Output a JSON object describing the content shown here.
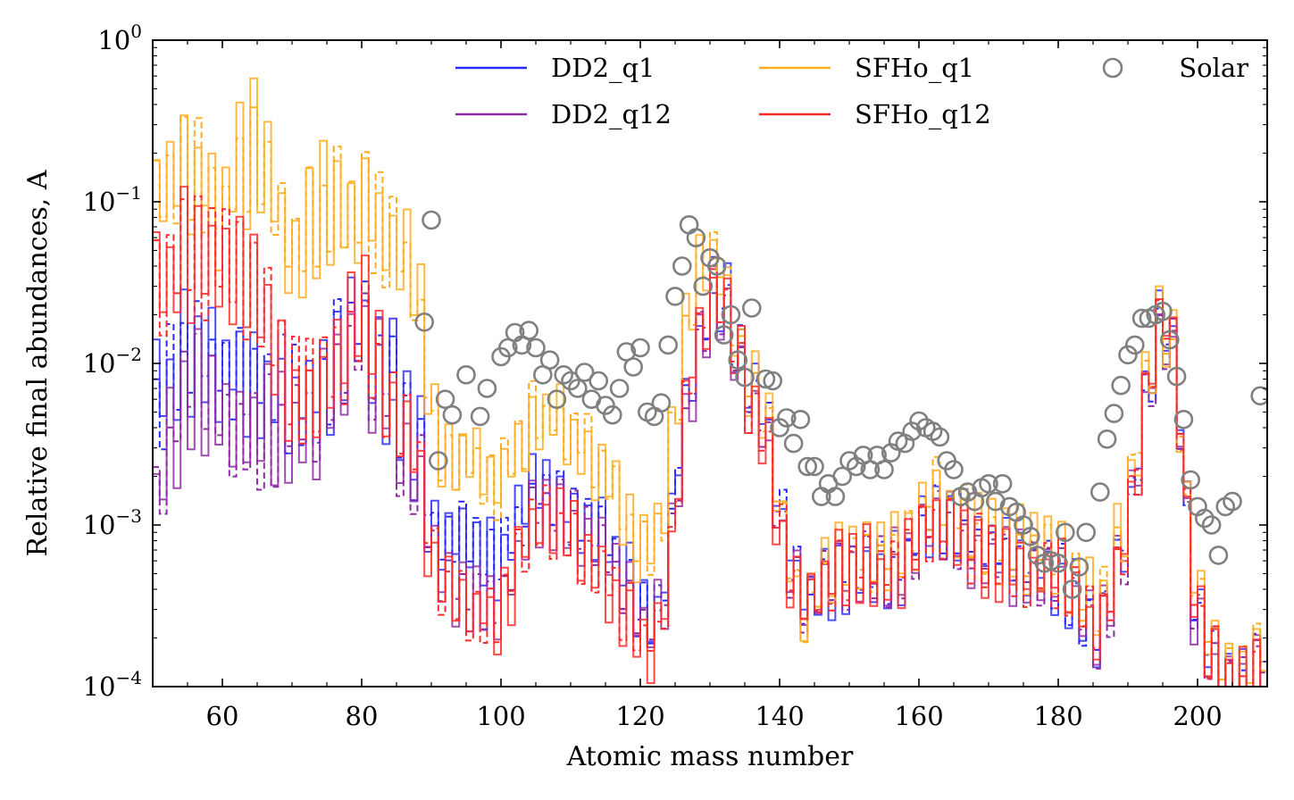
{
  "chart_data": {
    "type": "line",
    "xlabel": "Atomic mass number",
    "ylabel": "Relative final abundances, A",
    "xlim": [
      50,
      210
    ],
    "ylim": [
      0.0001,
      1
    ],
    "yscale": "log",
    "x_ticks": [
      60,
      80,
      100,
      120,
      140,
      160,
      180,
      200
    ],
    "x_tick_labels": [
      "60",
      "80",
      "100",
      "120",
      "140",
      "160",
      "180",
      "200"
    ],
    "y_ticks": [
      0.0001,
      0.001,
      0.01,
      0.1,
      1
    ],
    "y_tick_base": [
      "10",
      "10",
      "10",
      "10",
      "10"
    ],
    "y_tick_exp": [
      "−4",
      "−3",
      "−2",
      "−1",
      "0"
    ],
    "legend": {
      "placement": "top",
      "entries": [
        {
          "label": "DD2_q1",
          "color": "#2a2aff",
          "kind": "line"
        },
        {
          "label": "DD2_q12",
          "color": "#8e2ba3",
          "kind": "line"
        },
        {
          "label": "SFHo_q1",
          "color": "#ffad1f",
          "kind": "line"
        },
        {
          "label": "SFHo_q12",
          "color": "#ff2a2a",
          "kind": "line"
        },
        {
          "label": "Solar",
          "color": "#808080",
          "kind": "marker"
        }
      ]
    },
    "series": [
      {
        "name": "DD2_q1",
        "color": "#2a2aff",
        "style": "solid+dashed",
        "step": true,
        "x": [
          50,
          55,
          60,
          65,
          70,
          75,
          80,
          85,
          88,
          91,
          95,
          100,
          105,
          110,
          115,
          120,
          123,
          126,
          128,
          131,
          133,
          135,
          138,
          140,
          142,
          144,
          148,
          152,
          155,
          158,
          162,
          165,
          168,
          172,
          175,
          178,
          180,
          183,
          186,
          190,
          193,
          195,
          197,
          199,
          202,
          205,
          208,
          210
        ],
        "y": [
          0.005,
          0.012,
          0.01,
          0.008,
          0.006,
          0.008,
          0.02,
          0.006,
          0.003,
          0.0008,
          0.0009,
          0.0006,
          0.0017,
          0.0012,
          0.0009,
          0.0003,
          0.0003,
          0.004,
          0.012,
          0.03,
          0.02,
          0.008,
          0.005,
          0.0012,
          0.0006,
          0.0003,
          0.0005,
          0.0006,
          0.0005,
          0.0006,
          0.0013,
          0.001,
          0.0008,
          0.0007,
          0.0006,
          0.0006,
          0.0005,
          0.0003,
          0.0002,
          0.001,
          0.008,
          0.02,
          0.01,
          0.0005,
          0.00015,
          0.0001,
          0.00012,
          0.0002
        ]
      },
      {
        "name": "DD2_q12",
        "color": "#8e2ba3",
        "style": "solid+dashed",
        "step": true,
        "x": [
          50,
          55,
          60,
          65,
          70,
          75,
          80,
          85,
          88,
          91,
          95,
          100,
          105,
          110,
          115,
          120,
          123,
          126,
          128,
          131,
          133,
          135,
          138,
          140,
          142,
          144,
          148,
          152,
          155,
          158,
          162,
          165,
          168,
          172,
          175,
          178,
          180,
          183,
          186,
          190,
          193,
          195,
          197,
          199,
          202,
          205,
          208,
          210
        ],
        "y": [
          0.0012,
          0.008,
          0.005,
          0.004,
          0.004,
          0.006,
          0.015,
          0.004,
          0.002,
          0.0005,
          0.0004,
          0.0003,
          0.0014,
          0.001,
          0.0007,
          0.00025,
          0.00025,
          0.003,
          0.01,
          0.025,
          0.018,
          0.007,
          0.004,
          0.001,
          0.0005,
          0.0003,
          0.0005,
          0.00055,
          0.0005,
          0.0006,
          0.0011,
          0.0009,
          0.0007,
          0.0006,
          0.0006,
          0.0005,
          0.0005,
          0.0003,
          0.0002,
          0.0009,
          0.007,
          0.018,
          0.01,
          0.0004,
          0.00014,
          0.0001,
          0.0001,
          0.0002
        ]
      },
      {
        "name": "SFHo_q1",
        "color": "#ffad1f",
        "style": "solid+dashed",
        "step": true,
        "x": [
          50,
          55,
          60,
          65,
          70,
          75,
          80,
          85,
          88,
          91,
          95,
          100,
          105,
          110,
          115,
          120,
          123,
          126,
          128,
          131,
          133,
          135,
          138,
          140,
          142,
          144,
          148,
          152,
          155,
          158,
          162,
          165,
          168,
          172,
          175,
          178,
          180,
          183,
          186,
          190,
          193,
          195,
          197,
          199,
          202,
          205,
          208,
          210
        ],
        "y": [
          0.1,
          0.18,
          0.09,
          0.25,
          0.05,
          0.1,
          0.09,
          0.06,
          0.025,
          0.003,
          0.0025,
          0.0018,
          0.005,
          0.004,
          0.002,
          0.0007,
          0.0008,
          0.012,
          0.04,
          0.05,
          0.025,
          0.01,
          0.005,
          0.0015,
          0.0004,
          0.0003,
          0.0006,
          0.0007,
          0.0006,
          0.0007,
          0.0017,
          0.0012,
          0.0009,
          0.0008,
          0.0007,
          0.0007,
          0.0006,
          0.0004,
          0.0003,
          0.0012,
          0.009,
          0.02,
          0.01,
          0.0006,
          0.0002,
          0.00012,
          0.00015,
          0.00025
        ]
      },
      {
        "name": "SFHo_q12",
        "color": "#ff2a2a",
        "style": "solid+dashed",
        "step": true,
        "x": [
          50,
          55,
          60,
          65,
          70,
          75,
          80,
          85,
          88,
          91,
          95,
          100,
          105,
          110,
          115,
          120,
          123,
          126,
          128,
          131,
          133,
          135,
          138,
          140,
          142,
          144,
          148,
          152,
          155,
          158,
          162,
          165,
          168,
          172,
          175,
          178,
          180,
          183,
          186,
          190,
          193,
          195,
          197,
          199,
          202,
          205,
          208,
          210
        ],
        "y": [
          0.03,
          0.05,
          0.04,
          0.03,
          0.006,
          0.008,
          0.02,
          0.005,
          0.0025,
          0.0005,
          0.0003,
          0.0003,
          0.0012,
          0.0008,
          0.0005,
          0.0002,
          0.0002,
          0.003,
          0.015,
          0.03,
          0.02,
          0.007,
          0.004,
          0.001,
          0.0004,
          0.0003,
          0.0005,
          0.0006,
          0.0005,
          0.0006,
          0.0011,
          0.0009,
          0.0007,
          0.0006,
          0.0005,
          0.0005,
          0.0005,
          0.0003,
          0.0002,
          0.001,
          0.008,
          0.022,
          0.01,
          0.0005,
          0.00015,
          0.0001,
          0.0001,
          0.0002
        ]
      }
    ],
    "solar": {
      "name": "Solar",
      "color": "#808080",
      "marker": "open-circle",
      "x": [
        89,
        90,
        91,
        92,
        93,
        95,
        97,
        98,
        100,
        101,
        102,
        103,
        104,
        105,
        106,
        107,
        108,
        109,
        110,
        111,
        112,
        113,
        114,
        115,
        116,
        117,
        118,
        119,
        120,
        121,
        122,
        123,
        124,
        125,
        126,
        127,
        128,
        129,
        130,
        131,
        132,
        133,
        134,
        135,
        136,
        138,
        139,
        140,
        141,
        142,
        143,
        144,
        145,
        146,
        147,
        148,
        149,
        150,
        151,
        152,
        153,
        154,
        155,
        156,
        157,
        158,
        159,
        160,
        161,
        162,
        163,
        164,
        165,
        166,
        167,
        168,
        169,
        170,
        171,
        172,
        173,
        174,
        175,
        176,
        177,
        178,
        179,
        180,
        181,
        182,
        183,
        184,
        186,
        187,
        188,
        189,
        190,
        191,
        192,
        193,
        194,
        195,
        196,
        197,
        198,
        199,
        200,
        201,
        202,
        203,
        204,
        205,
        209
      ],
      "y": [
        0.018,
        0.077,
        0.0025,
        0.006,
        0.0048,
        0.0085,
        0.0047,
        0.007,
        0.011,
        0.0125,
        0.0155,
        0.013,
        0.016,
        0.0125,
        0.0085,
        0.0105,
        0.006,
        0.0085,
        0.0078,
        0.007,
        0.0088,
        0.006,
        0.0078,
        0.0055,
        0.0048,
        0.007,
        0.0118,
        0.0095,
        0.0125,
        0.005,
        0.0047,
        0.0057,
        0.013,
        0.026,
        0.04,
        0.072,
        0.06,
        0.03,
        0.045,
        0.04,
        0.015,
        0.02,
        0.0105,
        0.0082,
        0.022,
        0.008,
        0.0078,
        0.004,
        0.0046,
        0.0032,
        0.0045,
        0.0023,
        0.0023,
        0.0015,
        0.0018,
        0.0015,
        0.002,
        0.0025,
        0.0023,
        0.0027,
        0.0022,
        0.0027,
        0.0022,
        0.0028,
        0.0033,
        0.0032,
        0.0038,
        0.0044,
        0.004,
        0.0038,
        0.0035,
        0.0025,
        0.0022,
        0.0015,
        0.0016,
        0.0014,
        0.0017,
        0.0018,
        0.0014,
        0.0018,
        0.0013,
        0.0012,
        0.001,
        0.00085,
        0.00065,
        0.00058,
        0.0006,
        0.00058,
        0.0009,
        0.0004,
        0.00055,
        0.0009,
        0.0016,
        0.0034,
        0.0049,
        0.0073,
        0.0113,
        0.013,
        0.019,
        0.019,
        0.02,
        0.021,
        0.014,
        0.0083,
        0.0045,
        0.0019,
        0.0013,
        0.0011,
        0.001,
        0.00065,
        0.0013,
        0.0014,
        0.0063
      ]
    }
  }
}
